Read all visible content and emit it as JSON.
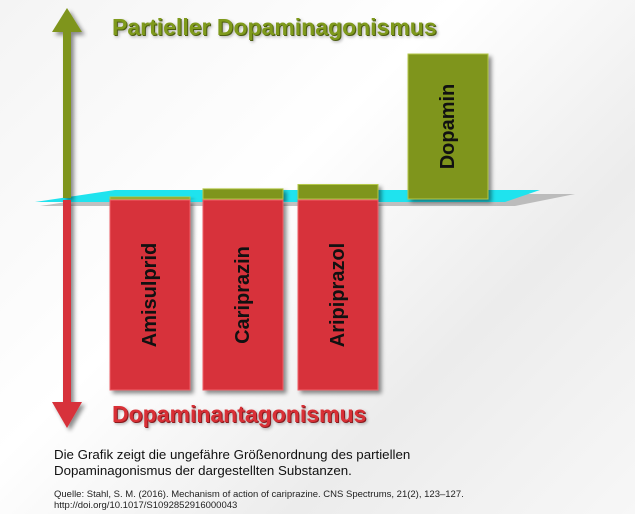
{
  "titles": {
    "agonism": "Partieller Dopaminagonismus",
    "antagonism": "Dopaminantagonismus"
  },
  "description": "Die Grafik zeigt die ungefähre Größenordnung des partiellen Dopaminagonismus der dargestellten Substanzen.",
  "source_line1": "Quelle:  Stahl, S. M. (2016). Mechanism of action of cariprazine. CNS Spectrums, 21(2), 123–127.",
  "source_line2": "http://doi.org/10.1017/S1092852916000043",
  "colors": {
    "agonism": "#7f951c",
    "antagonism": "#d7313a",
    "baseline_plane": "#1fe3ee"
  },
  "chart_data": {
    "type": "bar",
    "categories": [
      "Amisulprid",
      "Cariprazin",
      "Aripiprazol",
      "Dopamin"
    ],
    "series": [
      {
        "key": "agonism",
        "values": [
          1,
          7,
          10,
          100
        ]
      },
      {
        "key": "antagonism",
        "values": [
          100,
          100,
          100,
          0
        ]
      }
    ],
    "note": "relative magnitudes, no numeric axis shown"
  }
}
